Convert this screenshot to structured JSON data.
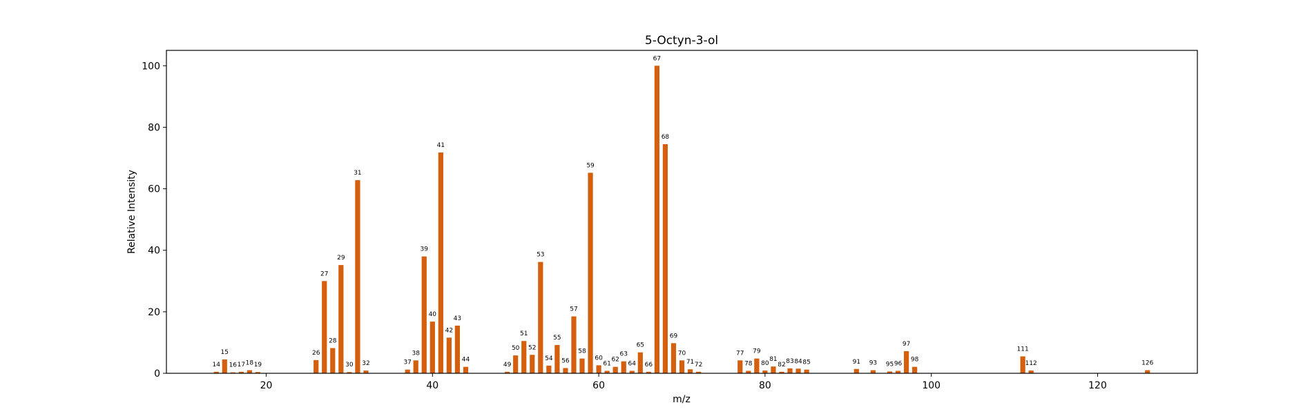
{
  "chart_data": {
    "type": "bar",
    "title": "5-Octyn-3-ol",
    "xlabel": "m/z",
    "ylabel": "Relative Intensity",
    "xlim": [
      8,
      132
    ],
    "ylim": [
      0,
      105
    ],
    "xticks": [
      20,
      40,
      60,
      80,
      100,
      120
    ],
    "yticks": [
      0,
      20,
      40,
      60,
      80,
      100
    ],
    "bar_color": "#d35f0f",
    "grid": false,
    "legend": "none",
    "points": [
      {
        "x": 14,
        "y": 0.5
      },
      {
        "x": 15,
        "y": 4.5
      },
      {
        "x": 16,
        "y": 0.3
      },
      {
        "x": 17,
        "y": 0.5
      },
      {
        "x": 18,
        "y": 1.0
      },
      {
        "x": 19,
        "y": 0.4
      },
      {
        "x": 26,
        "y": 4.3
      },
      {
        "x": 27,
        "y": 30.0
      },
      {
        "x": 28,
        "y": 8.2
      },
      {
        "x": 29,
        "y": 35.2
      },
      {
        "x": 30,
        "y": 0.4
      },
      {
        "x": 31,
        "y": 62.8
      },
      {
        "x": 32,
        "y": 0.9
      },
      {
        "x": 37,
        "y": 1.2
      },
      {
        "x": 38,
        "y": 4.2
      },
      {
        "x": 39,
        "y": 38.0
      },
      {
        "x": 40,
        "y": 16.8
      },
      {
        "x": 41,
        "y": 71.8
      },
      {
        "x": 42,
        "y": 11.6
      },
      {
        "x": 43,
        "y": 15.5
      },
      {
        "x": 44,
        "y": 2.1
      },
      {
        "x": 49,
        "y": 0.5
      },
      {
        "x": 50,
        "y": 5.8
      },
      {
        "x": 51,
        "y": 10.5
      },
      {
        "x": 52,
        "y": 6.0
      },
      {
        "x": 53,
        "y": 36.2
      },
      {
        "x": 54,
        "y": 2.5
      },
      {
        "x": 55,
        "y": 9.2
      },
      {
        "x": 56,
        "y": 1.7
      },
      {
        "x": 57,
        "y": 18.5
      },
      {
        "x": 58,
        "y": 4.8
      },
      {
        "x": 59,
        "y": 65.2
      },
      {
        "x": 60,
        "y": 2.6
      },
      {
        "x": 61,
        "y": 0.8
      },
      {
        "x": 62,
        "y": 2.1
      },
      {
        "x": 63,
        "y": 3.9
      },
      {
        "x": 64,
        "y": 0.8
      },
      {
        "x": 65,
        "y": 6.8
      },
      {
        "x": 66,
        "y": 0.5
      },
      {
        "x": 67,
        "y": 100.0
      },
      {
        "x": 68,
        "y": 74.5
      },
      {
        "x": 69,
        "y": 9.8
      },
      {
        "x": 70,
        "y": 4.2
      },
      {
        "x": 71,
        "y": 1.3
      },
      {
        "x": 72,
        "y": 0.5
      },
      {
        "x": 77,
        "y": 4.2
      },
      {
        "x": 78,
        "y": 0.8
      },
      {
        "x": 79,
        "y": 4.8
      },
      {
        "x": 80,
        "y": 0.9
      },
      {
        "x": 81,
        "y": 2.2
      },
      {
        "x": 82,
        "y": 0.5
      },
      {
        "x": 83,
        "y": 1.6
      },
      {
        "x": 84,
        "y": 1.5
      },
      {
        "x": 85,
        "y": 1.2
      },
      {
        "x": 91,
        "y": 1.4
      },
      {
        "x": 93,
        "y": 1.0
      },
      {
        "x": 95,
        "y": 0.6
      },
      {
        "x": 96,
        "y": 0.8
      },
      {
        "x": 97,
        "y": 7.2
      },
      {
        "x": 98,
        "y": 2.1
      },
      {
        "x": 111,
        "y": 5.5
      },
      {
        "x": 112,
        "y": 0.9
      },
      {
        "x": 126,
        "y": 1.0
      }
    ]
  }
}
